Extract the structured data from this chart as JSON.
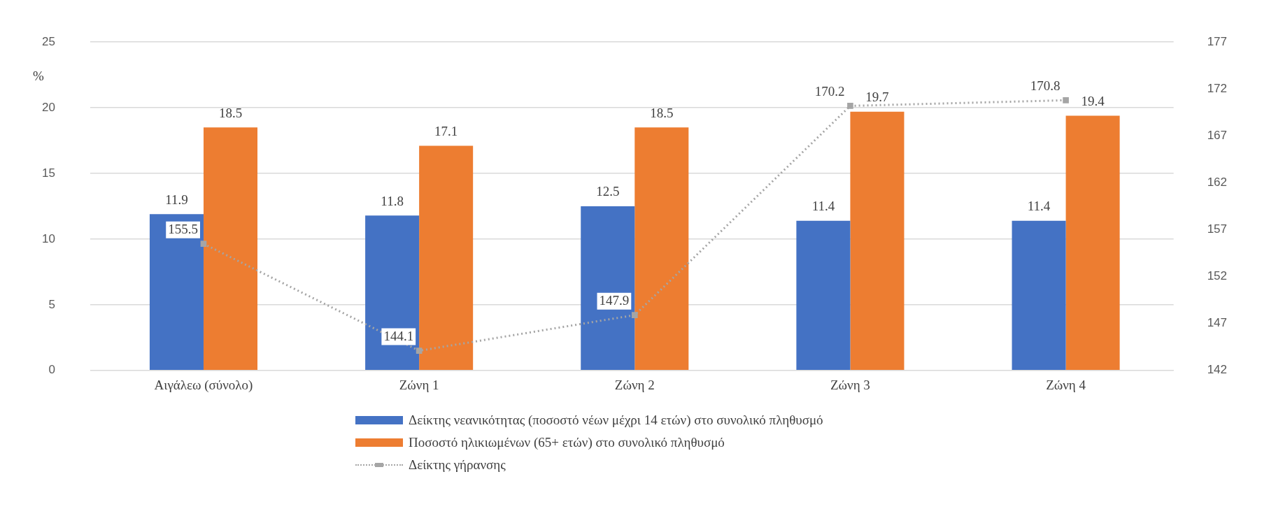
{
  "chart_data": {
    "type": "bar",
    "ylabel": "%",
    "categories": [
      "Αιγάλεω (σύνολο)",
      "Ζώνη 1",
      "Ζώνη 2",
      "Ζώνη 3",
      "Ζώνη 4"
    ],
    "series": [
      {
        "name": "Δείκτης νεανικότητας (ποσοστό νέων μέχρι 14 ετών) στο συνολικό πληθυσμό",
        "color": "#4472c4",
        "values": [
          11.9,
          11.8,
          12.5,
          11.4,
          11.4
        ]
      },
      {
        "name": "Ποσοστό ηλικιωμένων (65+ ετών)  στο συνολικό πληθυσμό",
        "color": "#ed7d31",
        "values": [
          18.5,
          17.1,
          18.5,
          19.7,
          19.4
        ]
      },
      {
        "name": "Δείκτης γήρανσης",
        "type": "line",
        "axis": "y2",
        "color": "#a5a5a5",
        "line_style": "dotted",
        "marker": "square",
        "values": [
          155.5,
          144.1,
          147.9,
          170.2,
          170.8
        ]
      }
    ],
    "ylim": [
      0,
      25
    ],
    "yticks": [
      0,
      5,
      10,
      15,
      20,
      25
    ],
    "y2lim": [
      142,
      177
    ],
    "y2ticks": [
      142,
      147,
      152,
      157,
      162,
      167,
      172,
      177
    ],
    "grid": "y",
    "legend": "bottom",
    "data_labels": true
  }
}
